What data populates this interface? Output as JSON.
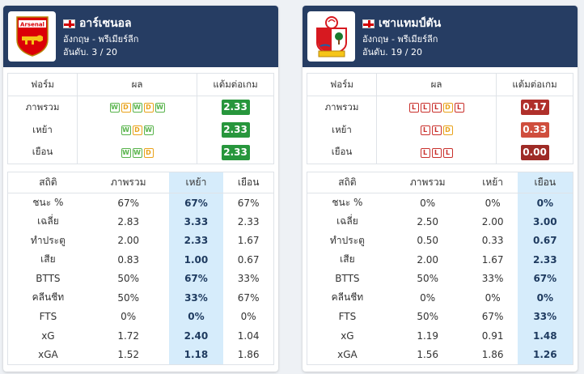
{
  "home": {
    "name": "อาร์เซนอล",
    "league": "อังกฤษ - พรีเมียร์ลีก",
    "rank": "อันดับ. 3 / 20",
    "logo_text": "Arsenal",
    "form_headers": [
      "ฟอร์ม",
      "ผล",
      "แต้มต่อเกม"
    ],
    "form_rows": [
      {
        "label": "ภาพรวม",
        "results": [
          "W",
          "D",
          "W",
          "D",
          "W"
        ],
        "ppg": "2.33",
        "ppg_color": "#27963c"
      },
      {
        "label": "เหย้า",
        "results": [
          "W",
          "D",
          "W"
        ],
        "ppg": "2.33",
        "ppg_color": "#27963c"
      },
      {
        "label": "เยือน",
        "results": [
          "W",
          "W",
          "D"
        ],
        "ppg": "2.33",
        "ppg_color": "#27963c"
      }
    ],
    "stat_headers": [
      "สถิติ",
      "ภาพรวม",
      "เหย้า",
      "เยือน"
    ],
    "highlight_col": 2,
    "stats": [
      [
        "ชนะ %",
        "67%",
        "67%",
        "67%"
      ],
      [
        "เฉลี่ย",
        "2.83",
        "3.33",
        "2.33"
      ],
      [
        "ทำประตู",
        "2.00",
        "2.33",
        "1.67"
      ],
      [
        "เสีย",
        "0.83",
        "1.00",
        "0.67"
      ],
      [
        "BTTS",
        "50%",
        "67%",
        "33%"
      ],
      [
        "คลีนชีท",
        "50%",
        "33%",
        "67%"
      ],
      [
        "FTS",
        "0%",
        "0%",
        "0%"
      ],
      [
        "xG",
        "1.72",
        "2.40",
        "1.04"
      ],
      [
        "xGA",
        "1.52",
        "1.18",
        "1.86"
      ]
    ]
  },
  "away": {
    "name": "เซาแทมป์ตัน",
    "league": "อังกฤษ - พรีเมียร์ลีก",
    "rank": "อันดับ. 19 / 20",
    "form_headers": [
      "ฟอร์ม",
      "ผล",
      "แต้มต่อเกม"
    ],
    "form_rows": [
      {
        "label": "ภาพรวม",
        "results": [
          "L",
          "L",
          "L",
          "D",
          "L"
        ],
        "ppg": "0.17",
        "ppg_color": "#b0302b"
      },
      {
        "label": "เหย้า",
        "results": [
          "L",
          "L",
          "D"
        ],
        "ppg": "0.33",
        "ppg_color": "#cf4e3d"
      },
      {
        "label": "เยือน",
        "results": [
          "L",
          "L",
          "L"
        ],
        "ppg": "0.00",
        "ppg_color": "#9e2b26"
      }
    ],
    "stat_headers": [
      "สถิติ",
      "ภาพรวม",
      "เหย้า",
      "เยือน"
    ],
    "highlight_col": 3,
    "stats": [
      [
        "ชนะ %",
        "0%",
        "0%",
        "0%"
      ],
      [
        "เฉลี่ย",
        "2.50",
        "2.00",
        "3.00"
      ],
      [
        "ทำประตู",
        "0.50",
        "0.33",
        "0.67"
      ],
      [
        "เสีย",
        "2.00",
        "1.67",
        "2.33"
      ],
      [
        "BTTS",
        "50%",
        "33%",
        "67%"
      ],
      [
        "คลีนชีท",
        "0%",
        "0%",
        "0%"
      ],
      [
        "FTS",
        "50%",
        "67%",
        "33%"
      ],
      [
        "xG",
        "1.19",
        "0.91",
        "1.48"
      ],
      [
        "xGA",
        "1.56",
        "1.86",
        "1.26"
      ]
    ]
  }
}
